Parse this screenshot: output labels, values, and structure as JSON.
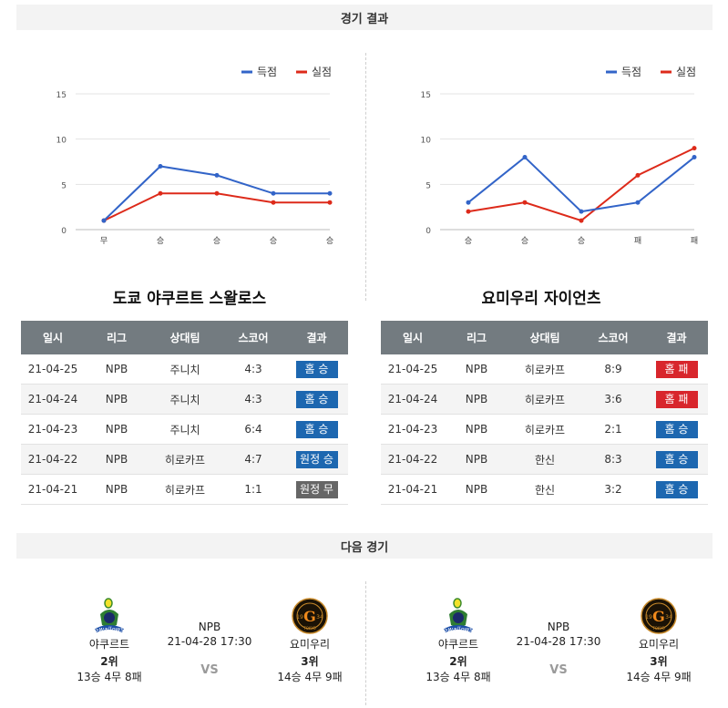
{
  "sections": {
    "results_title": "경기 결과",
    "next_title": "다음 경기"
  },
  "legend": {
    "scored": "득점",
    "conceded": "실점"
  },
  "colors": {
    "scored": "#3264c8",
    "conceded": "#dd2a1a",
    "win": "#1d67b0",
    "lose": "#d8262c",
    "draw": "#666666",
    "header_bg": "#737b80"
  },
  "chart_data": [
    {
      "type": "line",
      "categories": [
        "무",
        "승",
        "승",
        "승",
        "승"
      ],
      "series": [
        {
          "name": "득점",
          "values": [
            1,
            7,
            6,
            4,
            4
          ]
        },
        {
          "name": "실점",
          "values": [
            1,
            4,
            4,
            3,
            3
          ]
        }
      ],
      "yticks": [
        0,
        5,
        10,
        15
      ],
      "ylim": [
        0,
        15
      ],
      "grid": true,
      "legend_position": "top-right"
    },
    {
      "type": "line",
      "categories": [
        "승",
        "승",
        "승",
        "패",
        "패"
      ],
      "series": [
        {
          "name": "득점",
          "values": [
            3,
            8,
            2,
            3,
            8
          ]
        },
        {
          "name": "실점",
          "values": [
            2,
            3,
            1,
            6,
            9
          ]
        }
      ],
      "yticks": [
        0,
        5,
        10,
        15
      ],
      "ylim": [
        0,
        15
      ],
      "grid": true,
      "legend_position": "top-right"
    }
  ],
  "table_headers": [
    "일시",
    "리그",
    "상대팀",
    "스코어",
    "결과"
  ],
  "teams": [
    {
      "title": "도쿄 야쿠르트 스왈로스",
      "rows": [
        {
          "date": "21-04-25",
          "league": "NPB",
          "opponent": "주니치",
          "score": "4:3",
          "result": "홈 승",
          "type": "win"
        },
        {
          "date": "21-04-24",
          "league": "NPB",
          "opponent": "주니치",
          "score": "4:3",
          "result": "홈 승",
          "type": "win"
        },
        {
          "date": "21-04-23",
          "league": "NPB",
          "opponent": "주니치",
          "score": "6:4",
          "result": "홈 승",
          "type": "win"
        },
        {
          "date": "21-04-22",
          "league": "NPB",
          "opponent": "히로카프",
          "score": "4:7",
          "result": "원정 승",
          "type": "win"
        },
        {
          "date": "21-04-21",
          "league": "NPB",
          "opponent": "히로카프",
          "score": "1:1",
          "result": "원정 무",
          "type": "draw"
        }
      ]
    },
    {
      "title": "요미우리 자이언츠",
      "rows": [
        {
          "date": "21-04-25",
          "league": "NPB",
          "opponent": "히로카프",
          "score": "8:9",
          "result": "홈 패",
          "type": "lose"
        },
        {
          "date": "21-04-24",
          "league": "NPB",
          "opponent": "히로카프",
          "score": "3:6",
          "result": "홈 패",
          "type": "lose"
        },
        {
          "date": "21-04-23",
          "league": "NPB",
          "opponent": "히로카프",
          "score": "2:1",
          "result": "홈 승",
          "type": "win"
        },
        {
          "date": "21-04-22",
          "league": "NPB",
          "opponent": "한신",
          "score": "8:3",
          "result": "홈 승",
          "type": "win"
        },
        {
          "date": "21-04-21",
          "league": "NPB",
          "opponent": "한신",
          "score": "3:2",
          "result": "홈 승",
          "type": "win"
        }
      ]
    }
  ],
  "next_games": [
    {
      "home": {
        "name": "야쿠르트",
        "rank": "2위",
        "record": "13승 4무 8패",
        "logo": "swallows-logo"
      },
      "away": {
        "name": "요미우리",
        "rank": "3위",
        "record": "14승 4무 9패",
        "logo": "giants-logo"
      },
      "league": "NPB",
      "datetime": "21-04-28 17:30",
      "vs": "VS"
    },
    {
      "home": {
        "name": "야쿠르트",
        "rank": "2위",
        "record": "13승 4무 8패",
        "logo": "swallows-logo"
      },
      "away": {
        "name": "요미우리",
        "rank": "3위",
        "record": "14승 4무 9패",
        "logo": "giants-logo"
      },
      "league": "NPB",
      "datetime": "21-04-28 17:30",
      "vs": "VS"
    }
  ],
  "logo_text": {
    "giants_letter": "G",
    "giants_year_left": "19",
    "giants_year_right": "34",
    "giants_city": "TOKYO"
  }
}
